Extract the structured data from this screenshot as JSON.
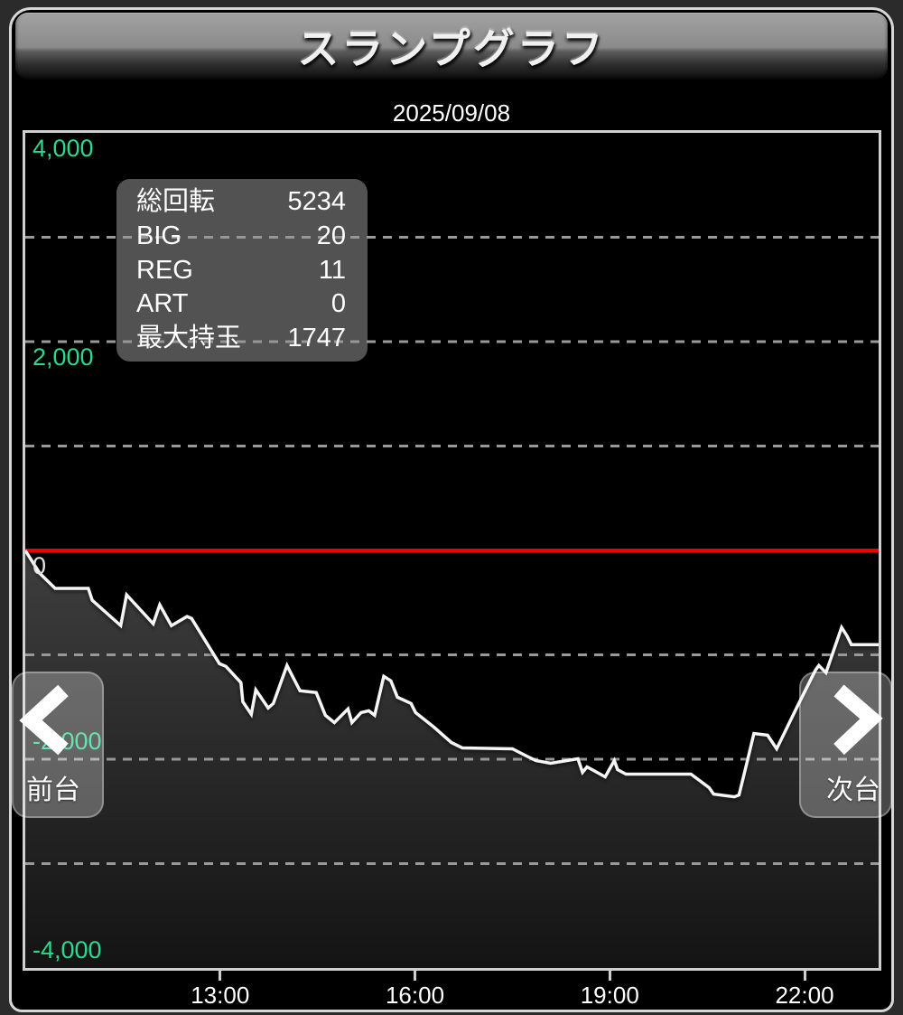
{
  "title_bar": {
    "title": "スランプグラフ"
  },
  "date": "2025/09/08",
  "stats_panel": {
    "rows": [
      {
        "label": "総回転",
        "value": "5234"
      },
      {
        "label": "BIG",
        "value": "20"
      },
      {
        "label": "REG",
        "value": "11"
      },
      {
        "label": "ART",
        "value": "0"
      },
      {
        "label": "最大持玉",
        "value": "1747"
      }
    ]
  },
  "nav": {
    "prev": {
      "label": "前台",
      "icon": "chevron-left-icon"
    },
    "next": {
      "label": "次台",
      "icon": "chevron-right-icon"
    }
  },
  "colors": {
    "axis_green": "#2bd98f",
    "zero_label": "#e2e2e2",
    "zero_line_red": "#f10000",
    "grid_gray": "#999999",
    "line_white": "#f5f5f5",
    "fill_top": "#404040",
    "fill_bottom": "#141414"
  },
  "chart_data": {
    "type": "line",
    "title": "スランプグラフ",
    "subtitle": "2025/09/08",
    "grid": "dashed horizontal every 1000",
    "legend_position": "none",
    "x_axis": {
      "unit": "hours",
      "range_hours": [
        10.0,
        23.14
      ],
      "tick_hours": [
        13,
        16,
        19,
        22
      ],
      "tick_labels": [
        "13:00",
        "16:00",
        "19:00",
        "22:00"
      ]
    },
    "y_axis": {
      "range": [
        -4000,
        4000
      ],
      "label_values": [
        4000,
        2000,
        0,
        -2000,
        -4000
      ],
      "labels": [
        "4,000",
        "2,000",
        "0",
        "-2,000",
        "-4,000"
      ],
      "gridline_values": [
        3000,
        2000,
        1000,
        -1000,
        -2000,
        -3000
      ],
      "zero_line_value": 0
    },
    "series": [
      {
        "points": [
          [
            10.0,
            0
          ],
          [
            10.22,
            -217
          ],
          [
            10.46,
            -364
          ],
          [
            10.97,
            -364
          ],
          [
            11.03,
            -477
          ],
          [
            11.47,
            -720
          ],
          [
            11.56,
            -425
          ],
          [
            11.97,
            -703
          ],
          [
            12.07,
            -521
          ],
          [
            12.25,
            -720
          ],
          [
            12.49,
            -633
          ],
          [
            12.56,
            -651
          ],
          [
            12.99,
            -1085
          ],
          [
            13.09,
            -1111
          ],
          [
            13.32,
            -1267
          ],
          [
            13.35,
            -1449
          ],
          [
            13.48,
            -1570
          ],
          [
            13.55,
            -1336
          ],
          [
            13.74,
            -1510
          ],
          [
            13.82,
            -1466
          ],
          [
            14.03,
            -1102
          ],
          [
            14.23,
            -1345
          ],
          [
            14.48,
            -1362
          ],
          [
            14.62,
            -1579
          ],
          [
            14.76,
            -1649
          ],
          [
            14.97,
            -1518
          ],
          [
            15.03,
            -1649
          ],
          [
            15.17,
            -1553
          ],
          [
            15.29,
            -1536
          ],
          [
            15.38,
            -1579
          ],
          [
            15.52,
            -1206
          ],
          [
            15.63,
            -1249
          ],
          [
            15.73,
            -1406
          ],
          [
            15.94,
            -1466
          ],
          [
            16.01,
            -1553
          ],
          [
            16.29,
            -1692
          ],
          [
            16.56,
            -1840
          ],
          [
            16.73,
            -1892
          ],
          [
            17.5,
            -1900
          ],
          [
            17.72,
            -1970
          ],
          [
            17.86,
            -2013
          ],
          [
            18.09,
            -2039
          ],
          [
            18.51,
            -1996
          ],
          [
            18.58,
            -2126
          ],
          [
            18.65,
            -2074
          ],
          [
            18.93,
            -2169
          ],
          [
            19.07,
            -2013
          ],
          [
            19.12,
            -2100
          ],
          [
            19.25,
            -2143
          ],
          [
            20.25,
            -2143
          ],
          [
            20.53,
            -2273
          ],
          [
            20.6,
            -2334
          ],
          [
            20.92,
            -2360
          ],
          [
            20.99,
            -2343
          ],
          [
            21.11,
            -2039
          ],
          [
            21.22,
            -1753
          ],
          [
            21.43,
            -1770
          ],
          [
            21.57,
            -1900
          ],
          [
            21.89,
            -1492
          ],
          [
            22.17,
            -1145
          ],
          [
            22.22,
            -1102
          ],
          [
            22.33,
            -1171
          ],
          [
            22.57,
            -738
          ],
          [
            22.65,
            -816
          ],
          [
            22.72,
            -902
          ],
          [
            23.14,
            -902
          ]
        ]
      }
    ]
  }
}
